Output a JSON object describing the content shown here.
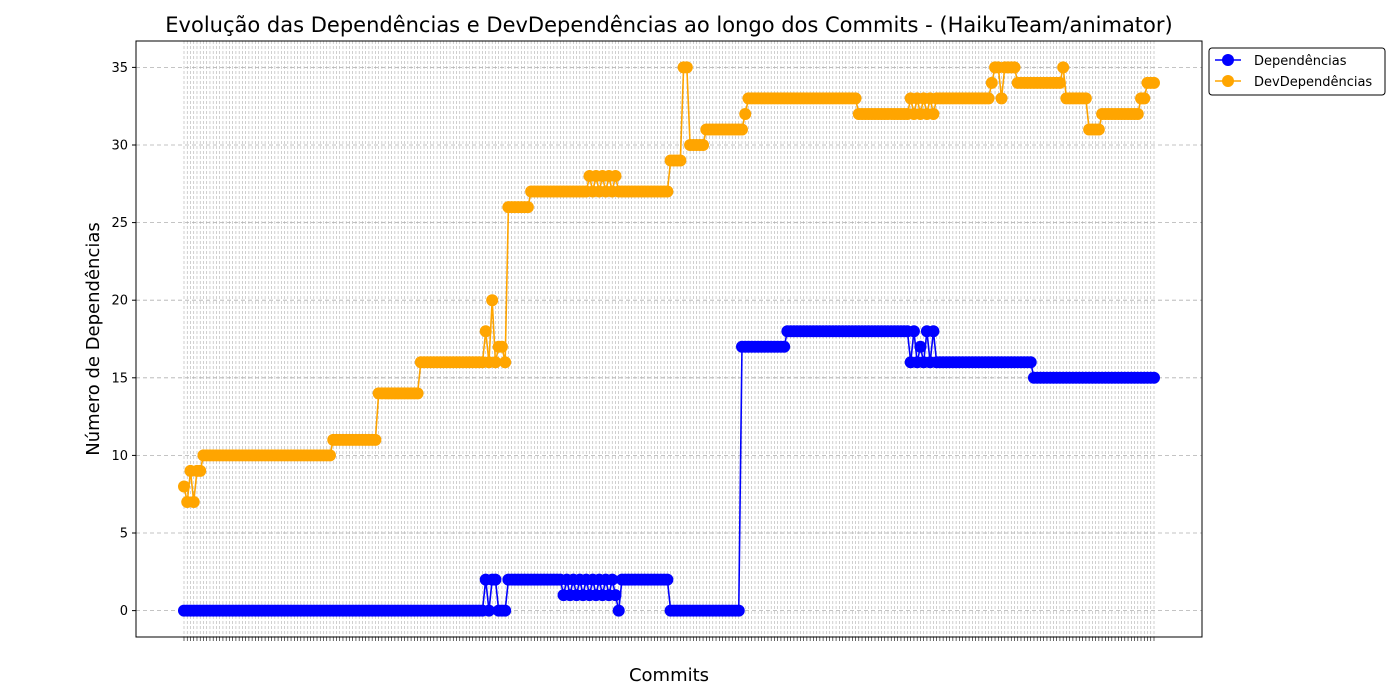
{
  "chart_data": {
    "type": "line",
    "title": "Evolução das Dependências e DevDependências ao longo dos Commits - (HaikuTeam/animator)",
    "xlabel": "Commits",
    "ylabel": "Número de Dependências",
    "ylim": [
      -1.7,
      36.7
    ],
    "yticks": [
      0,
      5,
      10,
      15,
      20,
      25,
      30,
      35
    ],
    "grid": true,
    "legend_position": "top-right-outside",
    "colors": {
      "Dependências": "#0000ff",
      "DevDependências": "#ffa500"
    },
    "num_commits": 300,
    "series": [
      {
        "name": "Dependências",
        "runs": [
          [
            0,
            93,
            0
          ],
          [
            93,
            94,
            2
          ],
          [
            94,
            95,
            0
          ],
          [
            95,
            97,
            2
          ],
          [
            97,
            99,
            0
          ],
          [
            99,
            100,
            0
          ],
          [
            100,
            117,
            2
          ],
          [
            117,
            118,
            1
          ],
          [
            118,
            119,
            2
          ],
          [
            119,
            120,
            1
          ],
          [
            120,
            121,
            2
          ],
          [
            121,
            122,
            1
          ],
          [
            122,
            123,
            2
          ],
          [
            123,
            124,
            1
          ],
          [
            124,
            125,
            2
          ],
          [
            125,
            126,
            1
          ],
          [
            126,
            127,
            2
          ],
          [
            127,
            128,
            1
          ],
          [
            128,
            129,
            2
          ],
          [
            129,
            130,
            1
          ],
          [
            130,
            131,
            2
          ],
          [
            131,
            132,
            1
          ],
          [
            132,
            133,
            2
          ],
          [
            133,
            134,
            1
          ],
          [
            134,
            135,
            0
          ],
          [
            135,
            150,
            2
          ],
          [
            150,
            172,
            0
          ],
          [
            172,
            186,
            17
          ],
          [
            186,
            224,
            18
          ],
          [
            224,
            225,
            16
          ],
          [
            225,
            226,
            18
          ],
          [
            226,
            227,
            16
          ],
          [
            227,
            228,
            17
          ],
          [
            228,
            229,
            16
          ],
          [
            229,
            230,
            18
          ],
          [
            230,
            231,
            16
          ],
          [
            231,
            232,
            18
          ],
          [
            232,
            233,
            16
          ],
          [
            233,
            262,
            16
          ],
          [
            262,
            300,
            15
          ]
        ]
      },
      {
        "name": "DevDependências",
        "runs": [
          [
            0,
            1,
            8
          ],
          [
            1,
            2,
            7
          ],
          [
            2,
            3,
            9
          ],
          [
            3,
            4,
            7
          ],
          [
            4,
            6,
            9
          ],
          [
            6,
            46,
            10
          ],
          [
            46,
            60,
            11
          ],
          [
            60,
            73,
            14
          ],
          [
            73,
            93,
            16
          ],
          [
            93,
            94,
            18
          ],
          [
            94,
            95,
            16
          ],
          [
            95,
            96,
            20
          ],
          [
            96,
            97,
            16
          ],
          [
            97,
            99,
            17
          ],
          [
            99,
            100,
            16
          ],
          [
            100,
            107,
            26
          ],
          [
            107,
            125,
            27
          ],
          [
            125,
            126,
            28
          ],
          [
            126,
            127,
            27
          ],
          [
            127,
            128,
            28
          ],
          [
            128,
            129,
            27
          ],
          [
            129,
            130,
            28
          ],
          [
            130,
            131,
            27
          ],
          [
            131,
            132,
            28
          ],
          [
            132,
            133,
            27
          ],
          [
            133,
            134,
            28
          ],
          [
            134,
            150,
            27
          ],
          [
            150,
            154,
            29
          ],
          [
            154,
            156,
            35
          ],
          [
            156,
            161,
            30
          ],
          [
            161,
            173,
            31
          ],
          [
            173,
            174,
            32
          ],
          [
            174,
            208,
            33
          ],
          [
            208,
            224,
            32
          ],
          [
            224,
            225,
            33
          ],
          [
            225,
            226,
            32
          ],
          [
            226,
            227,
            33
          ],
          [
            227,
            228,
            32
          ],
          [
            228,
            229,
            33
          ],
          [
            229,
            230,
            32
          ],
          [
            230,
            231,
            33
          ],
          [
            231,
            232,
            32
          ],
          [
            232,
            249,
            33
          ],
          [
            249,
            250,
            34
          ],
          [
            250,
            252,
            35
          ],
          [
            252,
            253,
            33
          ],
          [
            253,
            254,
            35
          ],
          [
            254,
            257,
            35
          ],
          [
            257,
            271,
            34
          ],
          [
            271,
            272,
            35
          ],
          [
            272,
            279,
            33
          ],
          [
            279,
            283,
            31
          ],
          [
            283,
            295,
            32
          ],
          [
            295,
            297,
            33
          ],
          [
            297,
            300,
            34
          ]
        ]
      }
    ]
  }
}
